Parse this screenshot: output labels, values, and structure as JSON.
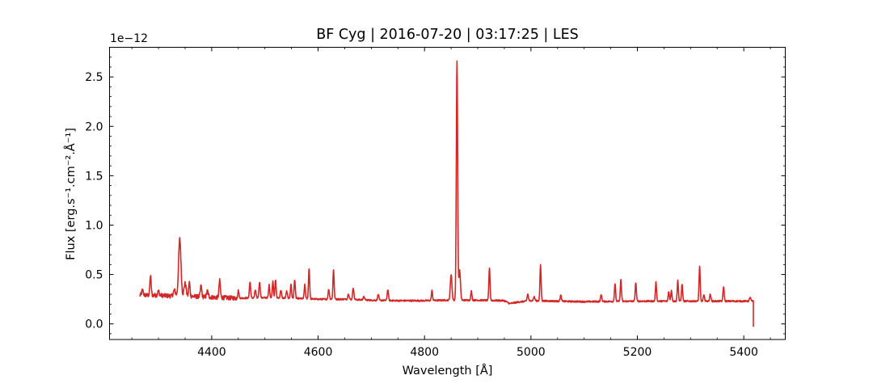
{
  "chart_data": {
    "type": "line",
    "title": "BF Cyg | 2016-07-20 | 03:17:25 | LES",
    "xlabel": "Wavelength [Å]",
    "ylabel": "Flux [erg.s⁻¹.cm⁻².Å⁻¹]",
    "y_offset_label": "1e−12",
    "xlim": [
      4208,
      5478
    ],
    "ylim": [
      -0.158,
      2.8
    ],
    "y_scale_factor": 1e-12,
    "x_ticks": [
      4400,
      4600,
      4800,
      5000,
      5200,
      5400
    ],
    "y_ticks": [
      0.0,
      0.5,
      1.0,
      1.5,
      2.0,
      2.5
    ],
    "x_tick_labels": [
      "4400",
      "4600",
      "4800",
      "5000",
      "5200",
      "5400"
    ],
    "y_tick_labels": [
      "0.0",
      "0.5",
      "1.0",
      "1.5",
      "2.0",
      "2.5"
    ],
    "grid": false,
    "series": [
      {
        "color": "#d62728",
        "range": [
          4265,
          5418
        ],
        "continuum": [
          [
            4265,
            0.29
          ],
          [
            4300,
            0.29
          ],
          [
            4330,
            0.28
          ],
          [
            4360,
            0.28
          ],
          [
            4400,
            0.27
          ],
          [
            4450,
            0.26
          ],
          [
            4500,
            0.265
          ],
          [
            4550,
            0.26
          ],
          [
            4600,
            0.25
          ],
          [
            4650,
            0.25
          ],
          [
            4700,
            0.24
          ],
          [
            4750,
            0.235
          ],
          [
            4800,
            0.235
          ],
          [
            4840,
            0.24
          ],
          [
            4900,
            0.24
          ],
          [
            4950,
            0.235
          ],
          [
            4960,
            0.205
          ],
          [
            4975,
            0.22
          ],
          [
            5000,
            0.235
          ],
          [
            5050,
            0.23
          ],
          [
            5100,
            0.225
          ],
          [
            5200,
            0.23
          ],
          [
            5300,
            0.23
          ],
          [
            5400,
            0.23
          ],
          [
            5415,
            0.23
          ]
        ],
        "lines": [
          [
            4270,
            0.05,
            1.5
          ],
          [
            4285,
            0.2,
            1.2
          ],
          [
            4300,
            0.04,
            1.5
          ],
          [
            4330,
            0.06,
            2
          ],
          [
            4340,
            0.58,
            2.2
          ],
          [
            4350,
            0.13,
            2
          ],
          [
            4358,
            0.14,
            1.2
          ],
          [
            4380,
            0.11,
            1.3
          ],
          [
            4392,
            0.06,
            1.5
          ],
          [
            4415,
            0.17,
            1.3
          ],
          [
            4450,
            0.08,
            1.2
          ],
          [
            4472,
            0.16,
            1.2
          ],
          [
            4482,
            0.08,
            1.2
          ],
          [
            4490,
            0.16,
            1.2
          ],
          [
            4508,
            0.13,
            1.1
          ],
          [
            4515,
            0.17,
            1.1
          ],
          [
            4520,
            0.18,
            1.1
          ],
          [
            4530,
            0.08,
            1.2
          ],
          [
            4541,
            0.07,
            1.2
          ],
          [
            4549,
            0.14,
            1.1
          ],
          [
            4556,
            0.19,
            1.1
          ],
          [
            4575,
            0.14,
            1.1
          ],
          [
            4583,
            0.31,
            1.1
          ],
          [
            4620,
            0.1,
            1.2
          ],
          [
            4629,
            0.3,
            1.1
          ],
          [
            4657,
            0.06,
            1.2
          ],
          [
            4666,
            0.12,
            1.2
          ],
          [
            4686,
            0.03,
            1.5
          ],
          [
            4713,
            0.06,
            1.2
          ],
          [
            4731,
            0.11,
            1.2
          ],
          [
            4814,
            0.1,
            1.1
          ],
          [
            4850,
            0.26,
            1.5
          ],
          [
            4861,
            2.42,
            1.25
          ],
          [
            4866,
            0.3,
            1.5
          ],
          [
            4888,
            0.09,
            1.1
          ],
          [
            4922,
            0.33,
            1.1
          ],
          [
            4994,
            0.07,
            1.2
          ],
          [
            5006,
            0.04,
            1.3
          ],
          [
            5018,
            0.36,
            1.1
          ],
          [
            5056,
            0.06,
            1.2
          ],
          [
            5132,
            0.07,
            1.2
          ],
          [
            5158,
            0.18,
            1.1
          ],
          [
            5169,
            0.22,
            1.1
          ],
          [
            5197,
            0.19,
            1.1
          ],
          [
            5235,
            0.19,
            1.1
          ],
          [
            5259,
            0.1,
            1.1
          ],
          [
            5264,
            0.11,
            1.1
          ],
          [
            5276,
            0.21,
            1.1
          ],
          [
            5284,
            0.17,
            1.1
          ],
          [
            5317,
            0.35,
            1.1
          ],
          [
            5325,
            0.06,
            1.2
          ],
          [
            5337,
            0.07,
            1.2
          ],
          [
            5362,
            0.15,
            1.1
          ],
          [
            5412,
            0.04,
            1.2
          ]
        ],
        "end_drop_value": -0.03
      }
    ]
  }
}
